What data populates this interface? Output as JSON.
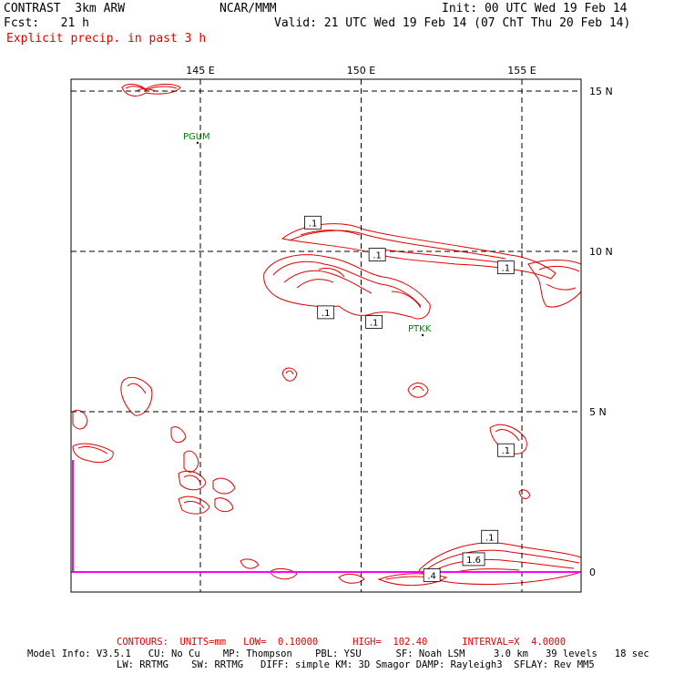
{
  "header": {
    "model": "CONTRAST  3km ARW",
    "center": "NCAR/MMM",
    "init": "Init: 00 UTC Wed 19 Feb 14",
    "fcst": "Fcst:   21 h",
    "valid": "Valid: 21 UTC Wed 19 Feb 14 (07 ChT Thu 20 Feb 14)",
    "field": "Explicit precip. in past 3 h"
  },
  "map": {
    "lon_labels": [
      "145 E",
      "150 E",
      "155 E"
    ],
    "lat_labels": [
      "15 N",
      "10 N",
      "5 N",
      "0"
    ],
    "lon_values": [
      145,
      150,
      155
    ],
    "lat_values": [
      15,
      10,
      5,
      0
    ],
    "stations": [
      {
        "id": "PGUM",
        "lon": 144.8,
        "lat": 13.5
      },
      {
        "id": "PTKK",
        "lon": 151.8,
        "lat": 7.5
      }
    ],
    "contour_labels": [
      {
        "text": ".1",
        "lon": 148.5,
        "lat": 10.9
      },
      {
        "text": ".1",
        "lon": 150.5,
        "lat": 9.9
      },
      {
        "text": ".1",
        "lon": 154.5,
        "lat": 9.5
      },
      {
        "text": ".1",
        "lon": 148.9,
        "lat": 8.1
      },
      {
        "text": ".1",
        "lon": 150.4,
        "lat": 7.8
      },
      {
        "text": ".1",
        "lon": 154.5,
        "lat": 3.8
      },
      {
        "text": ".1",
        "lon": 154.0,
        "lat": 1.1
      },
      {
        "text": "1.6",
        "lon": 153.5,
        "lat": 0.4
      },
      {
        "text": ".4",
        "lon": 152.2,
        "lat": -0.1
      }
    ],
    "colors": {
      "precip": "#e00000",
      "station": "#008000",
      "grid": "#000000",
      "coast": "#ff00ff"
    }
  },
  "footer": {
    "contours": "CONTOURS:  UNITS=mm   LOW=  0.10000      HIGH=  102.40      INTERVAL=X  4.0000",
    "model_info_1": "Model Info: V3.5.1   CU: No Cu    MP: Thompson    PBL: YSU      SF: Noah LSM     3.0 km   39 levels   18 sec",
    "model_info_2": "LW: RRTMG    SW: RRTMG   DIFF: simple KM: 3D Smagor DAMP: Rayleigh3  SFLAY: Rev MM5"
  }
}
